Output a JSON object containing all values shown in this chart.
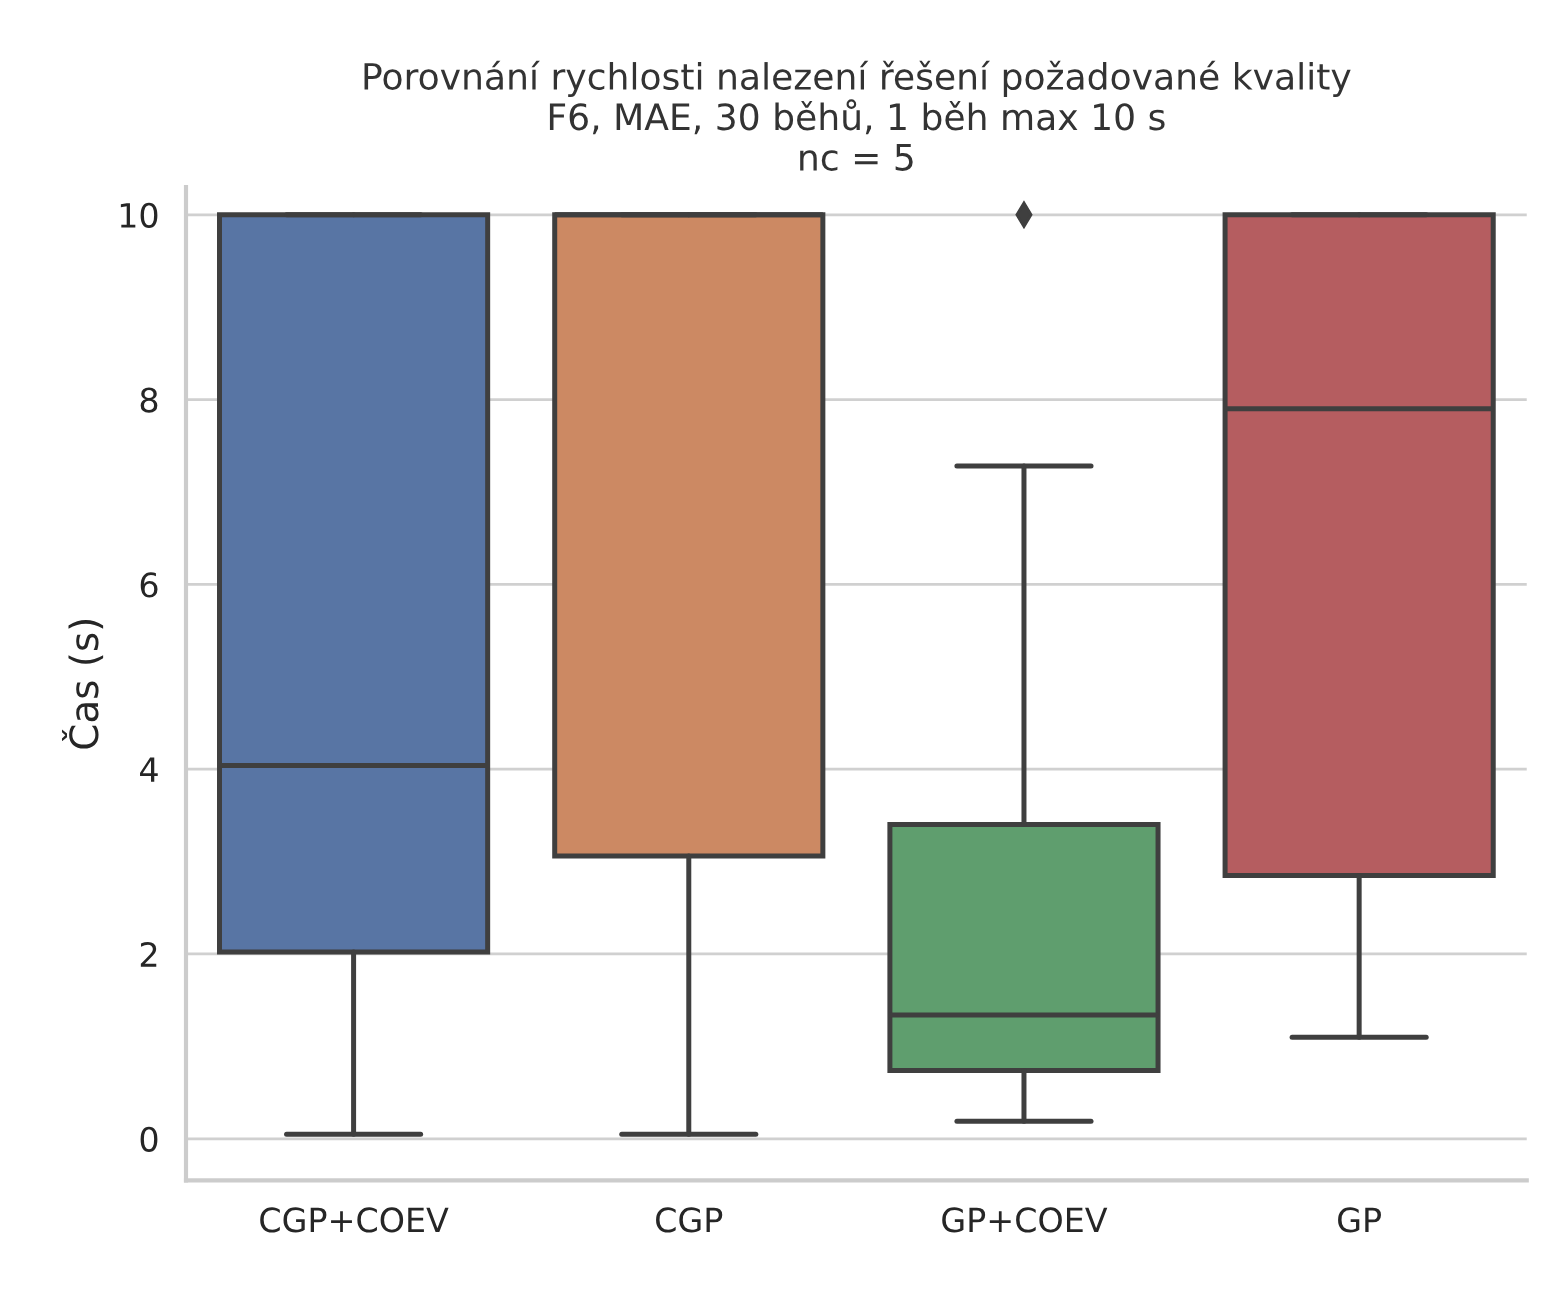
{
  "chart_data": {
    "type": "box",
    "title": "Porovnání rychlosti nalezení řešení požadované kvality\nF6, MAE, 30 běhů, 1 běh max 10 s\nnc = 5",
    "ylabel": "Čas (s)",
    "categories": [
      "CGP+COEV",
      "CGP",
      "GP+COEV",
      "GP"
    ],
    "colors": [
      "#5875a4",
      "#cc8963",
      "#5f9e6e",
      "#b55d60"
    ],
    "boxes": [
      {
        "low": 0.05,
        "q1": 2.02,
        "median": 4.04,
        "q3": 10,
        "high": 10
      },
      {
        "low": 0.05,
        "q1": 3.06,
        "median": 10,
        "q3": 10,
        "high": 10
      },
      {
        "low": 0.19,
        "q1": 0.74,
        "median": 1.34,
        "q3": 3.4,
        "high": 7.28,
        "outliers": [
          10
        ]
      },
      {
        "low": 1.1,
        "q1": 2.85,
        "median": 7.9,
        "q3": 10,
        "high": 10
      }
    ],
    "ylim": [
      -0.45,
      10.3
    ],
    "yticks": [
      0,
      2,
      4,
      6,
      8,
      10
    ],
    "grid": "y",
    "marker": "diamond"
  }
}
